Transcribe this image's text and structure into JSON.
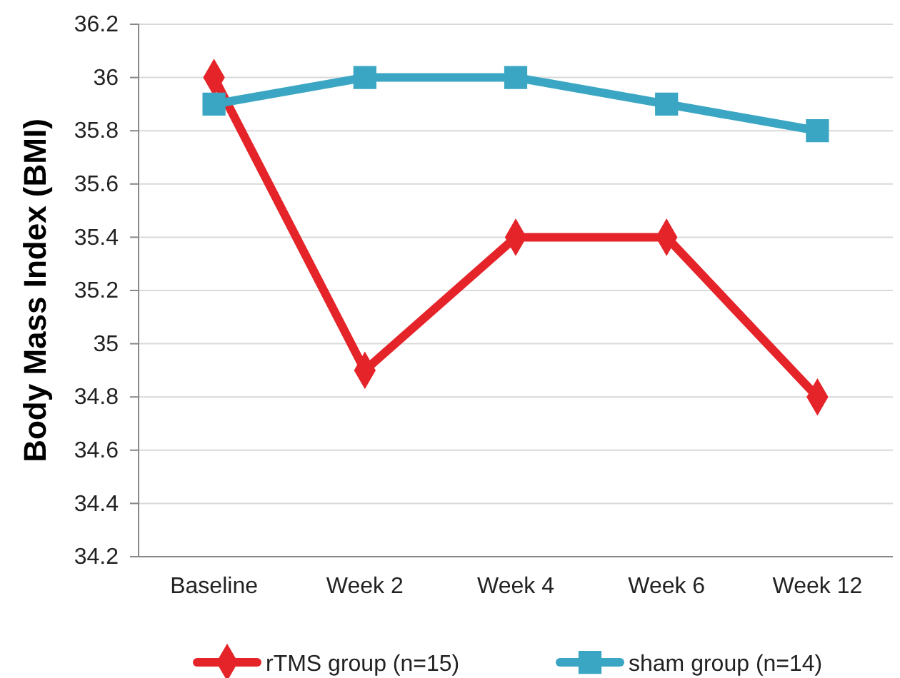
{
  "chart_data": {
    "type": "line",
    "ylabel": "Body Mass Index (BMI)",
    "categories": [
      "Baseline",
      "Week 2",
      "Week 4",
      "Week 6",
      "Week 12"
    ],
    "series": [
      {
        "name": "rTMS group (n=15)",
        "color": "#e5242a",
        "marker": "diamond",
        "values": [
          36,
          34.9,
          35.4,
          35.4,
          34.8
        ]
      },
      {
        "name": "sham group (n=14)",
        "color": "#3aa6c4",
        "marker": "square",
        "values": [
          35.9,
          36,
          36,
          35.9,
          35.8
        ]
      }
    ],
    "ylim": [
      34.2,
      36.2
    ],
    "yticks": [
      34.2,
      34.4,
      34.6,
      34.8,
      35,
      35.2,
      35.4,
      35.6,
      35.8,
      36,
      36.2
    ],
    "grid": "y",
    "legend": "bottom"
  }
}
